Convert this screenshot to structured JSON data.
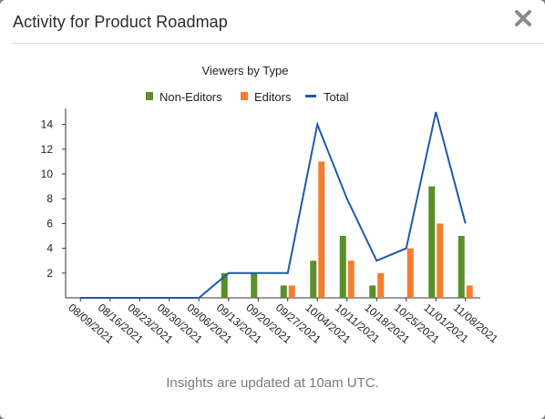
{
  "dialog": {
    "title": "Activity for Product Roadmap",
    "footnote": "Insights are updated at 10am UTC."
  },
  "icons": {
    "close": "close-icon"
  },
  "colors": {
    "non_editors": "#5a8f2b",
    "editors": "#f57d30",
    "total": "#1f5aa8",
    "axis": "#333333"
  },
  "chart_data": {
    "type": "bar",
    "title": "Viewers by Type",
    "xlabel": "",
    "ylabel": "",
    "ylim": [
      0,
      15
    ],
    "yticks": [
      2,
      4,
      6,
      8,
      10,
      12,
      14
    ],
    "legend_position": "top",
    "grid": false,
    "categories": [
      "08/09/2021",
      "08/16/2021",
      "08/23/2021",
      "08/30/2021",
      "09/06/2021",
      "09/13/2021",
      "09/20/2021",
      "09/27/2021",
      "10/04/2021",
      "10/11/2021",
      "10/18/2021",
      "10/25/2021",
      "11/01/2021",
      "11/08/2021"
    ],
    "series": [
      {
        "name": "Non-Editors",
        "kind": "bar",
        "values": [
          0,
          0,
          0,
          0,
          0,
          2,
          2,
          1,
          3,
          5,
          1,
          0,
          9,
          5
        ]
      },
      {
        "name": "Editors",
        "kind": "bar",
        "values": [
          0,
          0,
          0,
          0,
          0,
          0,
          0,
          1,
          11,
          3,
          2,
          4,
          6,
          1
        ]
      },
      {
        "name": "Total",
        "kind": "line",
        "values": [
          0,
          0,
          0,
          0,
          0,
          2,
          2,
          2,
          14,
          8,
          3,
          4,
          15,
          6
        ]
      }
    ]
  }
}
